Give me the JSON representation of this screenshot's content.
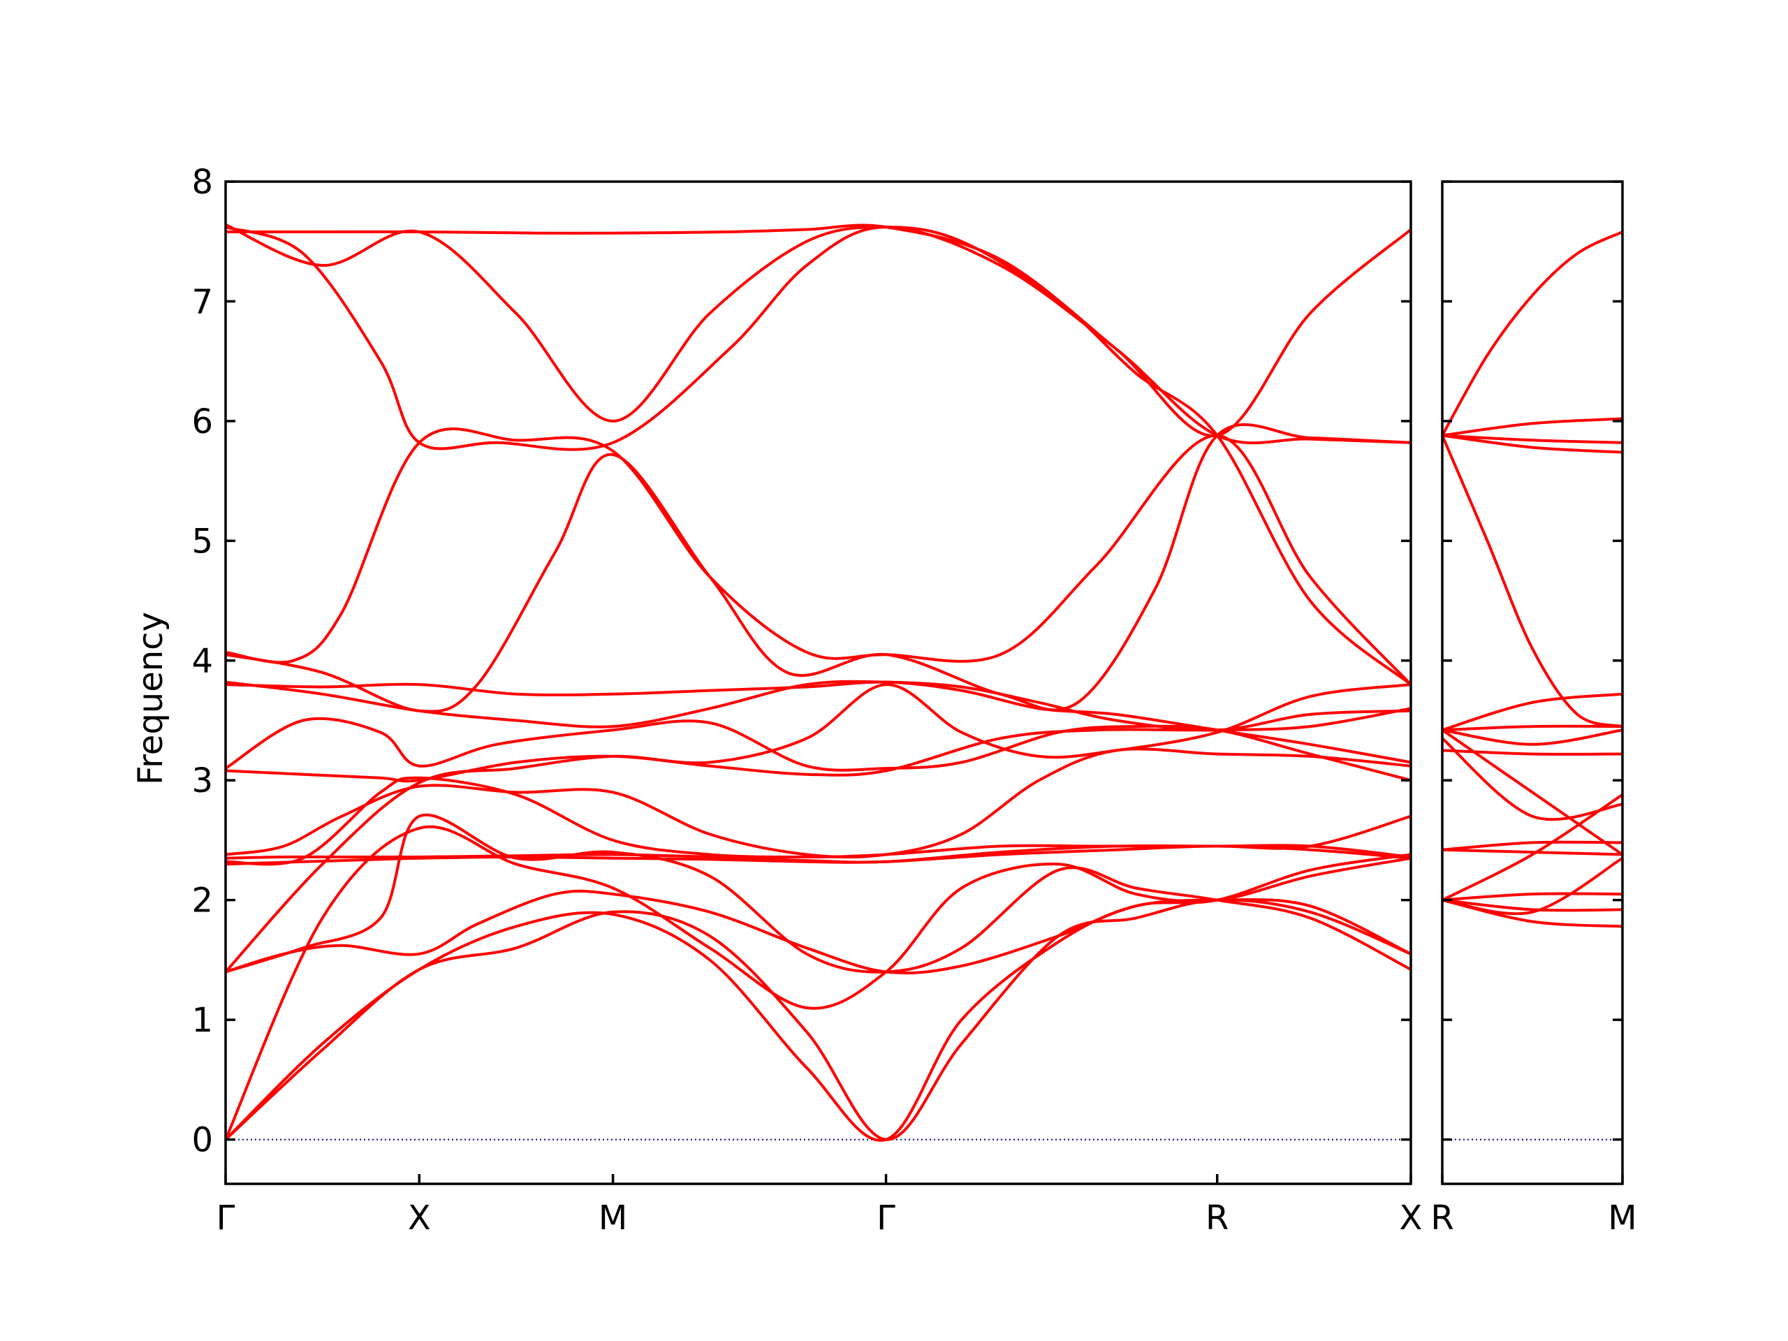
{
  "chart_data": {
    "type": "line",
    "ylabel": "Frequency",
    "ylim": [
      -0.37,
      8.0
    ],
    "yticks": [
      0,
      1,
      2,
      3,
      4,
      5,
      6,
      7,
      8
    ],
    "ytick_labels": [
      "0",
      "1",
      "2",
      "3",
      "4",
      "5",
      "6",
      "7",
      "8"
    ],
    "grid": false,
    "line_color": "#ff0000",
    "zero_line_color": "#00008b",
    "panels": [
      {
        "id": "path-1",
        "xticks": [
          0,
          1,
          2,
          3.41,
          5.12,
          6.12
        ],
        "xtick_labels": [
          "Γ",
          "X",
          "M",
          "Γ",
          "R",
          "X"
        ],
        "series": [
          {
            "x": [
              0,
              0.4,
              0.8,
              1.0,
              1.4,
              2.0,
              2.6,
              3.0,
              3.41,
              4.0,
              4.6,
              5.12,
              5.6,
              6.12
            ],
            "y": [
              7.62,
              7.4,
              6.5,
              5.82,
              5.82,
              5.82,
              6.6,
              7.3,
              7.62,
              7.3,
              6.6,
              5.88,
              5.85,
              5.82
            ]
          },
          {
            "x": [
              0,
              0.4,
              1.0,
              1.6,
              2.0,
              2.6,
              3.0,
              3.41,
              4.0,
              4.6,
              5.12,
              5.6,
              6.12
            ],
            "y": [
              7.58,
              7.58,
              7.58,
              7.57,
              7.57,
              7.58,
              7.6,
              7.62,
              7.35,
              6.6,
              5.88,
              6.9,
              7.6
            ]
          },
          {
            "x": [
              0,
              0.5,
              1.0,
              1.5,
              2.0,
              2.5,
              3.0,
              3.41,
              3.8,
              4.3,
              4.7,
              5.12,
              5.6,
              6.12
            ],
            "y": [
              7.64,
              7.3,
              7.58,
              6.9,
              6.0,
              6.9,
              7.5,
              7.62,
              7.5,
              7.0,
              6.4,
              5.88,
              4.5,
              3.8
            ]
          },
          {
            "x": [
              0,
              0.35,
              0.6,
              1.0,
              1.5,
              2.0,
              2.5,
              3.0,
              3.41,
              4.0,
              4.5,
              5.12,
              5.6,
              6.12
            ],
            "y": [
              4.07,
              4.0,
              4.4,
              5.82,
              5.84,
              5.75,
              4.7,
              4.07,
              4.05,
              4.05,
              4.8,
              5.88,
              4.7,
              3.8
            ]
          },
          {
            "x": [
              0,
              0.5,
              1.0,
              1.3,
              1.7,
              2.0,
              2.5,
              2.9,
              3.41,
              4.0,
              4.4,
              4.8,
              5.12,
              5.6,
              6.12
            ],
            "y": [
              4.05,
              3.9,
              3.58,
              3.8,
              4.9,
              5.72,
              4.7,
              3.9,
              4.05,
              3.72,
              3.65,
              4.6,
              5.88,
              5.86,
              5.82
            ]
          },
          {
            "x": [
              0,
              0.5,
              1.0,
              1.5,
              2.0,
              2.5,
              3.0,
              3.41,
              3.8,
              4.2,
              4.6,
              5.12,
              5.6,
              6.12
            ],
            "y": [
              3.82,
              3.72,
              3.58,
              3.5,
              3.45,
              3.6,
              3.8,
              3.82,
              3.78,
              3.65,
              3.5,
              3.42,
              3.55,
              3.58
            ]
          },
          {
            "x": [
              0,
              0.5,
              1.0,
              1.5,
              2.0,
              2.5,
              3.0,
              3.41,
              3.8,
              4.2,
              4.6,
              5.12,
              5.6,
              6.12
            ],
            "y": [
              3.8,
              3.78,
              3.8,
              3.72,
              3.72,
              3.75,
              3.78,
              3.82,
              3.75,
              3.6,
              3.55,
              3.42,
              3.3,
              3.15
            ]
          },
          {
            "x": [
              0,
              0.4,
              0.8,
              1.0,
              1.4,
              2.0,
              2.5,
              3.0,
              3.41,
              3.8,
              4.3,
              4.7,
              5.12,
              5.6,
              6.12
            ],
            "y": [
              3.1,
              3.5,
              3.4,
              3.12,
              3.3,
              3.42,
              3.48,
              3.12,
              3.1,
              3.15,
              3.4,
              3.45,
              3.42,
              3.22,
              3.0
            ]
          },
          {
            "x": [
              0,
              0.4,
              0.8,
              1.0,
              1.5,
              2.0,
              2.5,
              3.0,
              3.41,
              4.0,
              4.5,
              5.12,
              5.6,
              6.12
            ],
            "y": [
              3.08,
              3.05,
              3.02,
              3.0,
              3.15,
              3.2,
              3.12,
              3.05,
              3.08,
              3.35,
              3.42,
              3.42,
              3.45,
              3.6
            ]
          },
          {
            "x": [
              0,
              0.5,
              1.0,
              1.5,
              2.0,
              2.5,
              3.0,
              3.41,
              3.8,
              4.2,
              4.6,
              5.12,
              5.6,
              6.12
            ],
            "y": [
              1.4,
              2.3,
              2.98,
              3.1,
              3.2,
              3.15,
              3.35,
              3.8,
              3.4,
              3.2,
              3.25,
              3.4,
              3.7,
              3.8
            ]
          },
          {
            "x": [
              0,
              0.3,
              0.6,
              1.0,
              1.5,
              2.0,
              2.5,
              3.0,
              3.41,
              3.8,
              4.2,
              4.6,
              5.12,
              5.6,
              6.12
            ],
            "y": [
              2.38,
              2.45,
              2.7,
              2.95,
              2.9,
              2.9,
              2.55,
              2.38,
              2.38,
              2.55,
              3.0,
              3.25,
              3.22,
              3.2,
              3.12
            ]
          },
          {
            "x": [
              0,
              0.4,
              0.8,
              1.0,
              1.5,
              2.0,
              2.5,
              3.0,
              3.41,
              4.0,
              4.5,
              5.12,
              5.6,
              6.12
            ],
            "y": [
              2.32,
              2.35,
              2.9,
              3.02,
              2.88,
              2.5,
              2.38,
              2.36,
              2.38,
              2.45,
              2.45,
              2.45,
              2.45,
              2.7
            ]
          },
          {
            "x": [
              0,
              0.3,
              0.6,
              1.0,
              1.5,
              2.0,
              2.5,
              3.0,
              3.41,
              4.0,
              4.6,
              5.12,
              5.6,
              6.12
            ],
            "y": [
              2.35,
              2.36,
              2.36,
              2.36,
              2.37,
              2.38,
              2.36,
              2.33,
              2.32,
              2.4,
              2.45,
              2.45,
              2.45,
              2.36
            ]
          },
          {
            "x": [
              0,
              0.4,
              0.8,
              1.0,
              1.5,
              2.0,
              2.5,
              3.0,
              3.41,
              4.0,
              4.6,
              5.12,
              5.6,
              6.12
            ],
            "y": [
              2.3,
              2.32,
              2.34,
              2.35,
              2.36,
              2.35,
              2.34,
              2.32,
              2.32,
              2.38,
              2.42,
              2.45,
              2.42,
              2.35
            ]
          },
          {
            "x": [
              0,
              0.3,
              0.6,
              1.0,
              1.3,
              1.7,
              2.0,
              2.5,
              3.0,
              3.41,
              3.8,
              4.3,
              4.7,
              5.12,
              5.6,
              6.12
            ],
            "y": [
              1.4,
              1.55,
              1.62,
              1.55,
              1.8,
              2.05,
              2.05,
              1.9,
              1.6,
              1.4,
              1.45,
              1.7,
              1.95,
              2.0,
              1.95,
              1.55
            ]
          },
          {
            "x": [
              0,
              0.4,
              0.8,
              1.0,
              1.5,
              2.0,
              2.5,
              3.0,
              3.41,
              3.8,
              4.3,
              4.7,
              5.12,
              5.6,
              6.12
            ],
            "y": [
              1.4,
              1.6,
              1.85,
              2.7,
              2.35,
              2.4,
              2.2,
              1.55,
              1.4,
              1.6,
              2.25,
              2.1,
              2.0,
              1.85,
              1.42
            ]
          },
          {
            "x": [
              0,
              0.5,
              1.0,
              1.5,
              2.0,
              2.5,
              3.0,
              3.41,
              3.8,
              4.3,
              4.7,
              5.12,
              5.6,
              6.12
            ],
            "y": [
              0.0,
              1.85,
              2.6,
              2.3,
              2.1,
              1.6,
              1.1,
              1.4,
              2.1,
              2.3,
              2.05,
              2.0,
              2.2,
              2.35
            ]
          },
          {
            "x": [
              0,
              0.5,
              1.0,
              1.5,
              2.0,
              2.5,
              3.0,
              3.41,
              3.8,
              4.3,
              4.7,
              5.12,
              5.6,
              6.12
            ],
            "y": [
              0.0,
              0.75,
              1.42,
              1.6,
              1.9,
              1.7,
              0.9,
              0.0,
              0.8,
              1.7,
              1.85,
              2.0,
              1.9,
              1.55
            ]
          },
          {
            "x": [
              0,
              0.5,
              1.0,
              1.5,
              2.0,
              2.5,
              3.0,
              3.41,
              3.8,
              4.3,
              4.7,
              5.12,
              5.6,
              6.12
            ],
            "y": [
              0.0,
              0.8,
              1.42,
              1.78,
              1.88,
              1.5,
              0.6,
              0.0,
              1.0,
              1.65,
              1.95,
              2.0,
              2.25,
              2.38
            ]
          }
        ]
      },
      {
        "id": "path-2",
        "xticks": [
          0,
          1
        ],
        "xtick_labels": [
          "R",
          "M"
        ],
        "series": [
          {
            "x": [
              0,
              0.25,
              0.5,
              0.75,
              1.0
            ],
            "y": [
              5.88,
              6.55,
              7.05,
              7.4,
              7.58
            ]
          },
          {
            "x": [
              0,
              0.5,
              1.0
            ],
            "y": [
              5.88,
              5.98,
              6.02
            ]
          },
          {
            "x": [
              0,
              0.5,
              1.0
            ],
            "y": [
              5.88,
              5.84,
              5.82
            ]
          },
          {
            "x": [
              0,
              0.5,
              1.0
            ],
            "y": [
              5.88,
              5.78,
              5.74
            ]
          },
          {
            "x": [
              0,
              0.25,
              0.5,
              0.75,
              1.0
            ],
            "y": [
              5.88,
              5.0,
              4.1,
              3.55,
              3.45
            ]
          },
          {
            "x": [
              0,
              0.5,
              1.0
            ],
            "y": [
              3.42,
              3.65,
              3.72
            ]
          },
          {
            "x": [
              0,
              0.5,
              1.0
            ],
            "y": [
              3.42,
              3.45,
              3.45
            ]
          },
          {
            "x": [
              0,
              0.5,
              1.0
            ],
            "y": [
              3.42,
              3.3,
              3.42
            ]
          },
          {
            "x": [
              0,
              0.5,
              1.0
            ],
            "y": [
              3.42,
              2.9,
              2.38
            ]
          },
          {
            "x": [
              0,
              0.5,
              1.0
            ],
            "y": [
              3.25,
              3.22,
              3.22
            ]
          },
          {
            "x": [
              0,
              0.5,
              1.0
            ],
            "y": [
              3.35,
              2.7,
              2.8
            ]
          },
          {
            "x": [
              0,
              0.5,
              1.0
            ],
            "y": [
              2.42,
              2.48,
              2.48
            ]
          },
          {
            "x": [
              0,
              0.5,
              1.0
            ],
            "y": [
              2.42,
              2.4,
              2.38
            ]
          },
          {
            "x": [
              0,
              0.5,
              1.0
            ],
            "y": [
              2.0,
              2.38,
              2.88
            ]
          },
          {
            "x": [
              0,
              0.5,
              1.0
            ],
            "y": [
              2.0,
              2.05,
              2.05
            ]
          },
          {
            "x": [
              0,
              0.5,
              1.0
            ],
            "y": [
              2.0,
              1.92,
              1.92
            ]
          },
          {
            "x": [
              0,
              0.5,
              1.0
            ],
            "y": [
              2.0,
              1.82,
              1.78
            ]
          },
          {
            "x": [
              0,
              0.5,
              1.0
            ],
            "y": [
              2.0,
              1.9,
              2.35
            ]
          }
        ]
      }
    ]
  }
}
